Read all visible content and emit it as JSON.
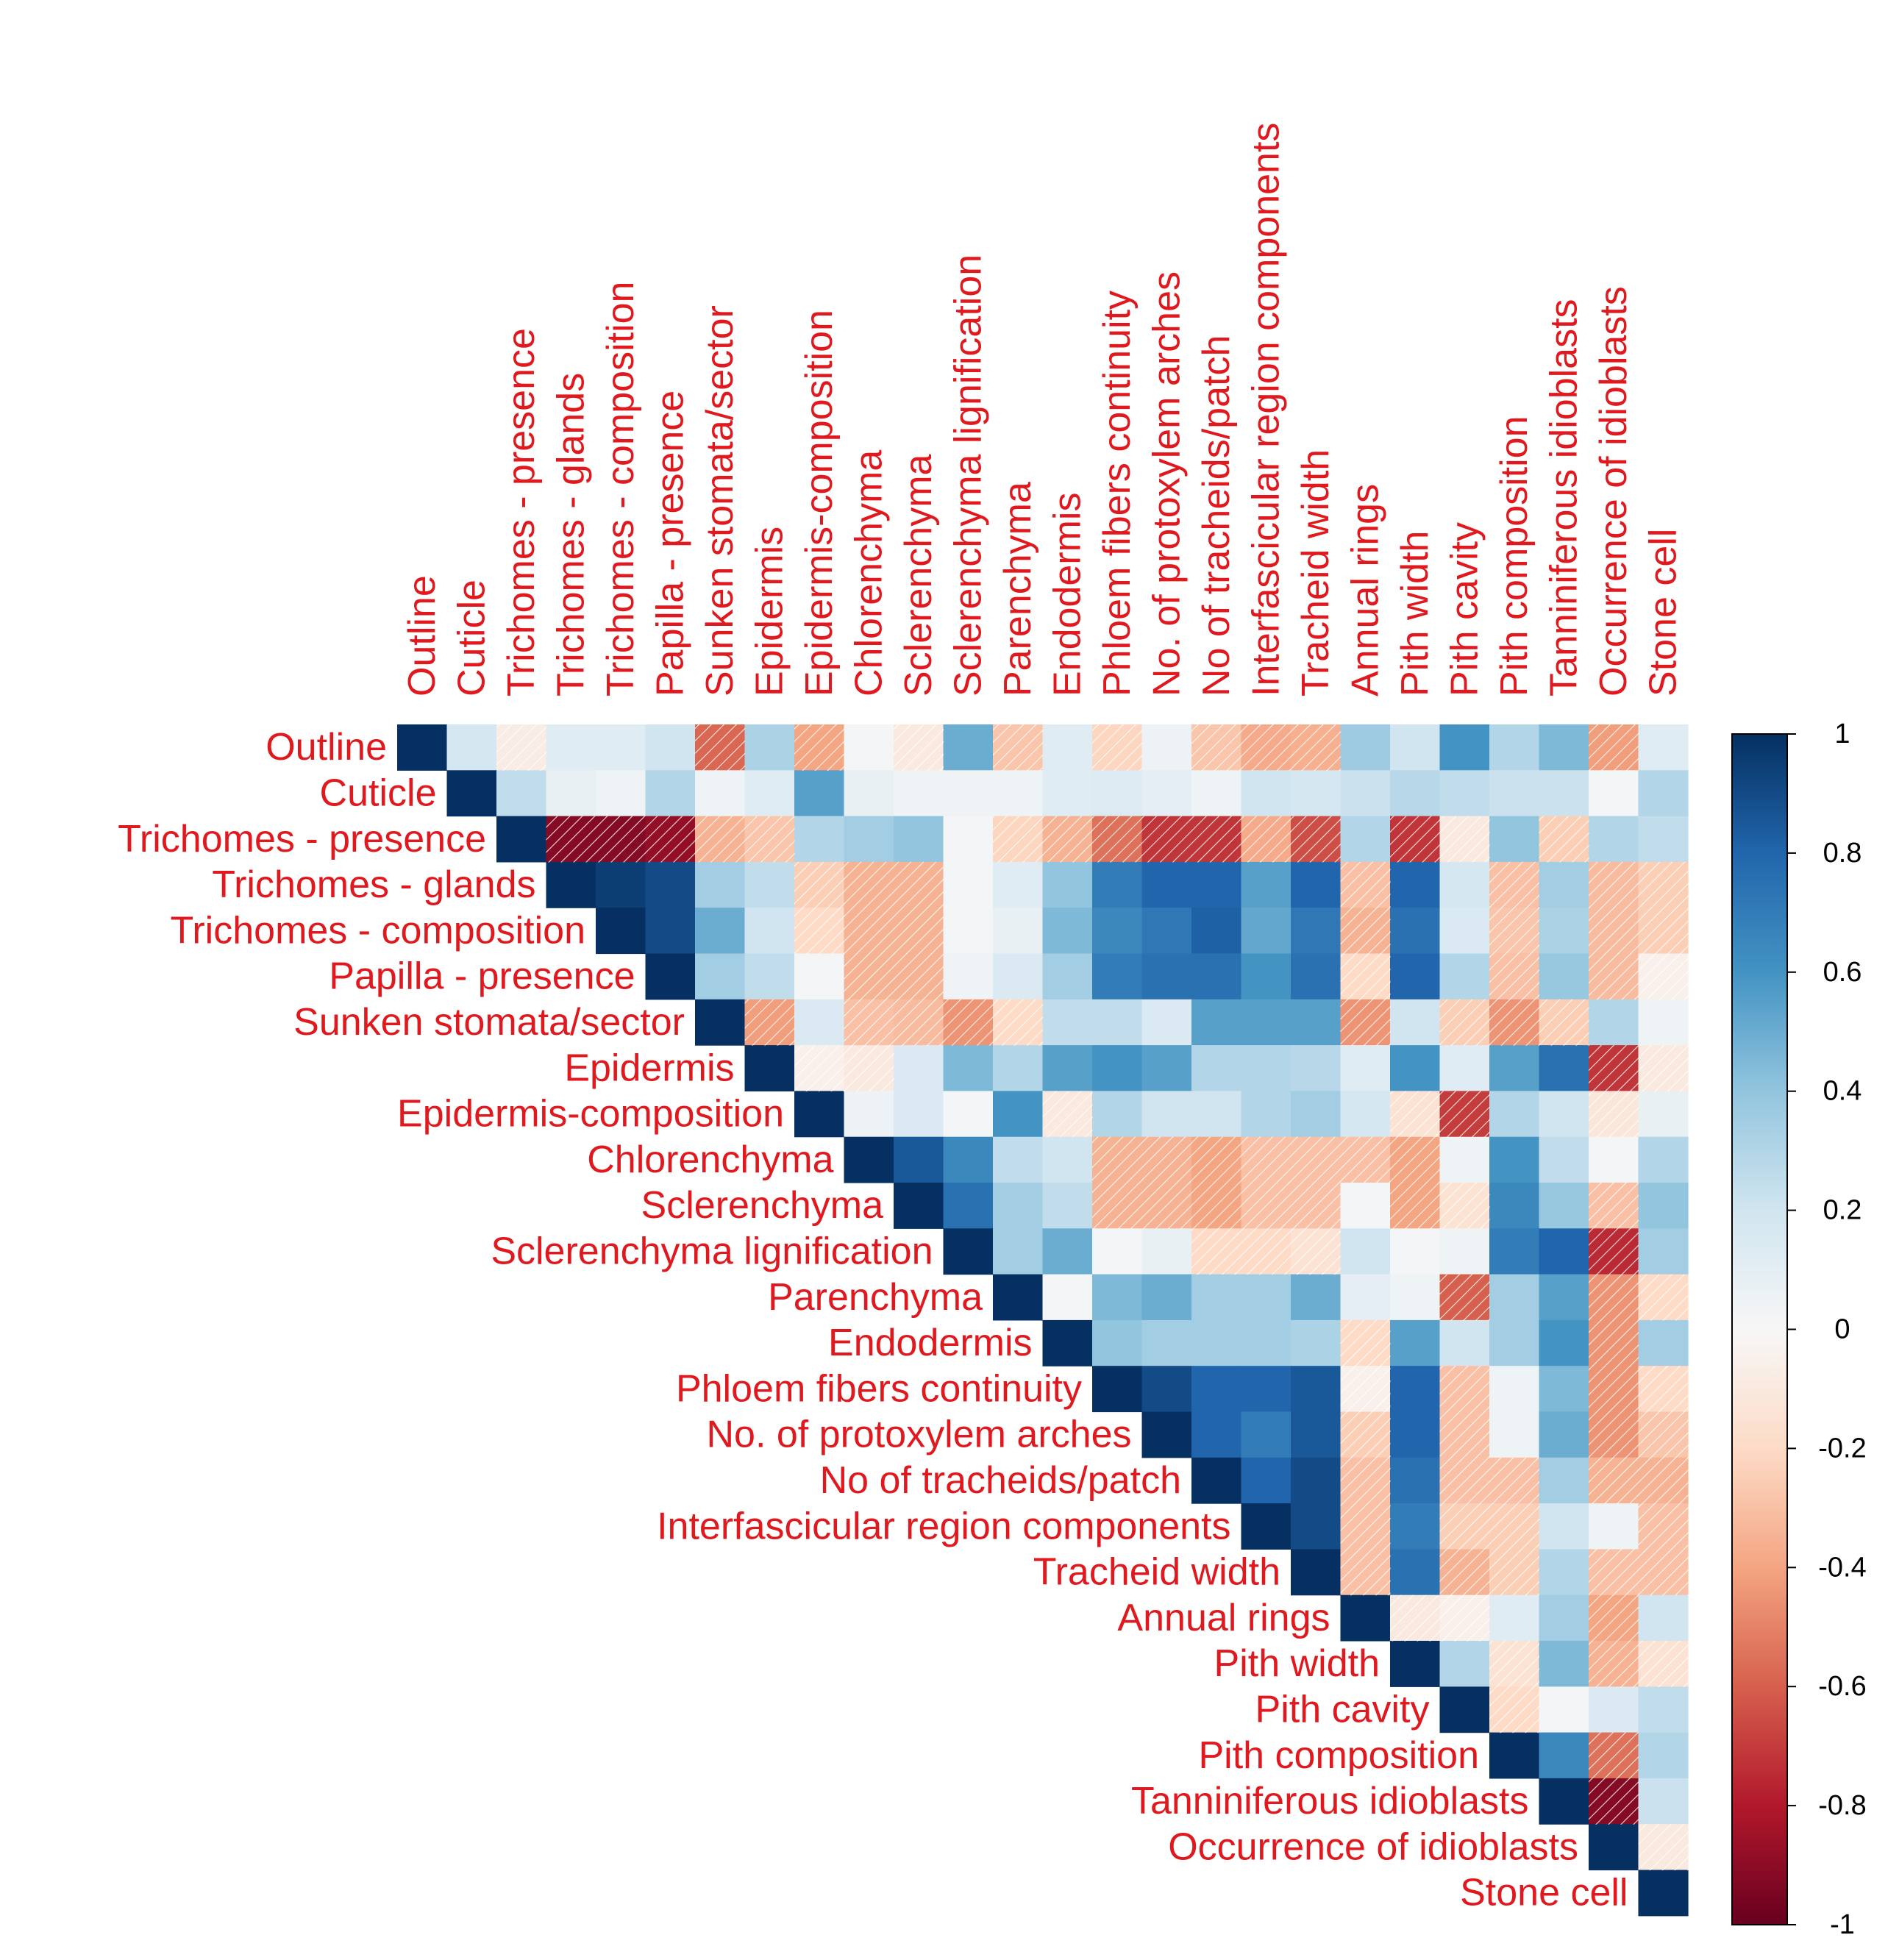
{
  "chart_data": {
    "type": "heatmap",
    "shape": "upper",
    "title": "",
    "variables": [
      "Outline",
      "Cuticle",
      "Trichomes - presence",
      "Trichomes - glands",
      "Trichomes - composition",
      "Papilla - presence",
      "Sunken stomata/sector",
      "Epidermis",
      "Epidermis-composition",
      "Chlorenchyma",
      "Sclerenchyma",
      "Sclerenchyma lignification",
      "Parenchyma",
      "Endodermis",
      "Phloem fibers continuity",
      "No. of protoxylem arches",
      "No of tracheids/patch",
      "Interfascicular region components",
      "Tracheid width",
      "Annual rings",
      "Pith width",
      "Pith cavity",
      "Pith composition",
      "Tanniniferous idioblasts",
      "Occurrence of idioblasts",
      "Stone cell"
    ],
    "matrix": [
      [
        1,
        0.18,
        -0.08,
        0.12,
        0.12,
        0.2,
        -0.58,
        0.32,
        -0.4,
        0.02,
        -0.1,
        0.5,
        -0.28,
        0.12,
        -0.22,
        0.06,
        -0.28,
        -0.38,
        -0.36,
        0.36,
        0.2,
        0.6,
        0.3,
        0.45,
        -0.42,
        0.12
      ],
      [
        null,
        1,
        0.25,
        0.08,
        0.05,
        0.3,
        0.05,
        0.12,
        0.55,
        0.08,
        0.05,
        0.04,
        0.05,
        0.12,
        0.14,
        0.1,
        0.05,
        0.2,
        0.18,
        0.22,
        0.28,
        0.25,
        0.22,
        0.22,
        0.02,
        0.3
      ],
      [
        null,
        null,
        1,
        -0.92,
        -0.92,
        -0.88,
        -0.35,
        -0.28,
        0.3,
        0.35,
        0.4,
        0.02,
        -0.22,
        -0.35,
        -0.55,
        -0.72,
        -0.72,
        -0.38,
        -0.65,
        0.3,
        -0.72,
        -0.1,
        0.4,
        -0.25,
        0.3,
        0.25
      ],
      [
        null,
        null,
        null,
        1,
        0.95,
        0.9,
        0.35,
        0.25,
        -0.25,
        -0.35,
        -0.35,
        0.02,
        0.12,
        0.4,
        0.7,
        0.8,
        0.8,
        0.55,
        0.8,
        -0.3,
        0.8,
        0.18,
        -0.3,
        0.35,
        -0.32,
        -0.25
      ],
      [
        null,
        null,
        null,
        null,
        1,
        0.9,
        0.5,
        0.2,
        -0.2,
        -0.35,
        -0.35,
        0.02,
        0.08,
        0.45,
        0.65,
        0.72,
        0.82,
        0.52,
        0.72,
        -0.35,
        0.75,
        0.15,
        -0.28,
        0.32,
        -0.32,
        -0.25
      ],
      [
        null,
        null,
        null,
        null,
        null,
        1,
        0.35,
        0.25,
        0.02,
        -0.35,
        -0.35,
        0.04,
        0.15,
        0.35,
        0.7,
        0.75,
        0.75,
        0.6,
        0.75,
        -0.2,
        0.8,
        0.3,
        -0.3,
        0.38,
        -0.32,
        -0.05
      ],
      [
        null,
        null,
        null,
        null,
        null,
        null,
        1,
        -0.42,
        0.15,
        -0.3,
        -0.32,
        -0.45,
        -0.2,
        0.25,
        0.25,
        0.15,
        0.55,
        0.55,
        0.55,
        -0.45,
        0.2,
        -0.25,
        -0.45,
        -0.25,
        0.3,
        0.05
      ],
      [
        null,
        null,
        null,
        null,
        null,
        null,
        null,
        1,
        -0.05,
        -0.1,
        0.15,
        0.45,
        0.3,
        0.55,
        0.6,
        0.55,
        0.3,
        0.3,
        0.28,
        0.12,
        0.6,
        0.12,
        0.55,
        0.75,
        -0.72,
        -0.1
      ],
      [
        null,
        null,
        null,
        null,
        null,
        null,
        null,
        null,
        1,
        0.06,
        0.15,
        0.02,
        0.6,
        -0.1,
        0.3,
        0.2,
        0.2,
        0.3,
        0.35,
        0.18,
        -0.15,
        -0.7,
        0.3,
        0.2,
        -0.12,
        0.08
      ],
      [
        null,
        null,
        null,
        null,
        null,
        null,
        null,
        null,
        null,
        1,
        0.85,
        0.65,
        0.25,
        0.2,
        -0.35,
        -0.35,
        -0.4,
        -0.3,
        -0.3,
        -0.3,
        -0.4,
        0.05,
        0.6,
        0.25,
        0.02,
        0.3
      ],
      [
        null,
        null,
        null,
        null,
        null,
        null,
        null,
        null,
        null,
        null,
        1,
        0.75,
        0.35,
        0.25,
        -0.35,
        -0.35,
        -0.4,
        -0.3,
        -0.3,
        0.02,
        -0.4,
        -0.15,
        0.65,
        0.38,
        -0.3,
        0.4
      ],
      [
        null,
        null,
        null,
        null,
        null,
        null,
        null,
        null,
        null,
        null,
        null,
        1,
        0.35,
        0.5,
        0.02,
        0.08,
        -0.2,
        -0.2,
        -0.15,
        0.2,
        0.02,
        0.05,
        0.7,
        0.8,
        -0.75,
        0.35
      ],
      [
        null,
        null,
        null,
        null,
        null,
        null,
        null,
        null,
        null,
        null,
        null,
        null,
        1,
        0.02,
        0.45,
        0.5,
        0.35,
        0.35,
        0.5,
        0.1,
        0.05,
        -0.6,
        0.35,
        0.55,
        -0.45,
        -0.2
      ],
      [
        null,
        null,
        null,
        null,
        null,
        null,
        null,
        null,
        null,
        null,
        null,
        null,
        null,
        1,
        0.4,
        0.35,
        0.35,
        0.35,
        0.32,
        -0.2,
        0.55,
        0.2,
        0.35,
        0.6,
        -0.45,
        0.35
      ],
      [
        null,
        null,
        null,
        null,
        null,
        null,
        null,
        null,
        null,
        null,
        null,
        null,
        null,
        null,
        1,
        0.9,
        0.8,
        0.8,
        0.85,
        -0.05,
        0.8,
        -0.3,
        0.05,
        0.45,
        -0.45,
        -0.2
      ],
      [
        null,
        null,
        null,
        null,
        null,
        null,
        null,
        null,
        null,
        null,
        null,
        null,
        null,
        null,
        null,
        1,
        0.8,
        0.7,
        0.85,
        -0.25,
        0.8,
        -0.3,
        0.05,
        0.5,
        -0.45,
        -0.28
      ],
      [
        null,
        null,
        null,
        null,
        null,
        null,
        null,
        null,
        null,
        null,
        null,
        null,
        null,
        null,
        null,
        null,
        1,
        0.8,
        0.9,
        -0.3,
        0.75,
        -0.3,
        -0.3,
        0.35,
        -0.35,
        -0.35
      ],
      [
        null,
        null,
        null,
        null,
        null,
        null,
        null,
        null,
        null,
        null,
        null,
        null,
        null,
        null,
        null,
        null,
        null,
        1,
        0.9,
        -0.3,
        0.7,
        -0.25,
        -0.25,
        0.2,
        0.05,
        -0.3
      ],
      [
        null,
        null,
        null,
        null,
        null,
        null,
        null,
        null,
        null,
        null,
        null,
        null,
        null,
        null,
        null,
        null,
        null,
        null,
        1,
        -0.3,
        0.75,
        -0.35,
        -0.25,
        0.3,
        -0.3,
        -0.3
      ],
      [
        null,
        null,
        null,
        null,
        null,
        null,
        null,
        null,
        null,
        null,
        null,
        null,
        null,
        null,
        null,
        null,
        null,
        null,
        null,
        1,
        -0.1,
        -0.05,
        0.12,
        0.35,
        -0.4,
        0.2
      ],
      [
        null,
        null,
        null,
        null,
        null,
        null,
        null,
        null,
        null,
        null,
        null,
        null,
        null,
        null,
        null,
        null,
        null,
        null,
        null,
        null,
        1,
        0.3,
        -0.15,
        0.45,
        -0.35,
        -0.15
      ],
      [
        null,
        null,
        null,
        null,
        null,
        null,
        null,
        null,
        null,
        null,
        null,
        null,
        null,
        null,
        null,
        null,
        null,
        null,
        null,
        null,
        null,
        1,
        -0.2,
        0.02,
        0.15,
        0.25
      ],
      [
        null,
        null,
        null,
        null,
        null,
        null,
        null,
        null,
        null,
        null,
        null,
        null,
        null,
        null,
        null,
        null,
        null,
        null,
        null,
        null,
        null,
        null,
        1,
        0.65,
        -0.55,
        0.3
      ],
      [
        null,
        null,
        null,
        null,
        null,
        null,
        null,
        null,
        null,
        null,
        null,
        null,
        null,
        null,
        null,
        null,
        null,
        null,
        null,
        null,
        null,
        null,
        null,
        1,
        -0.92,
        0.22
      ],
      [
        null,
        null,
        null,
        null,
        null,
        null,
        null,
        null,
        null,
        null,
        null,
        null,
        null,
        null,
        null,
        null,
        null,
        null,
        null,
        null,
        null,
        null,
        null,
        null,
        1,
        -0.1
      ],
      [
        null,
        null,
        null,
        null,
        null,
        null,
        null,
        null,
        null,
        null,
        null,
        null,
        null,
        null,
        null,
        null,
        null,
        null,
        null,
        null,
        null,
        null,
        null,
        null,
        null,
        1
      ]
    ],
    "colorbar": {
      "range": [
        -1,
        1
      ],
      "ticks": [
        "1",
        "0.8",
        "0.6",
        "0.4",
        "0.2",
        "0",
        "-0.2",
        "-0.4",
        "-0.6",
        "-0.8",
        "-1"
      ],
      "tick_values": [
        1,
        0.8,
        0.6,
        0.4,
        0.2,
        0,
        -0.2,
        -0.4,
        -0.6,
        -0.8,
        -1
      ]
    },
    "negative_marker": "diagonal-hatch",
    "colors": {
      "label": "#E0191F",
      "positive_strong": "#053061",
      "neutral": "#F7F7F7",
      "negative_strong": "#67001F"
    }
  }
}
